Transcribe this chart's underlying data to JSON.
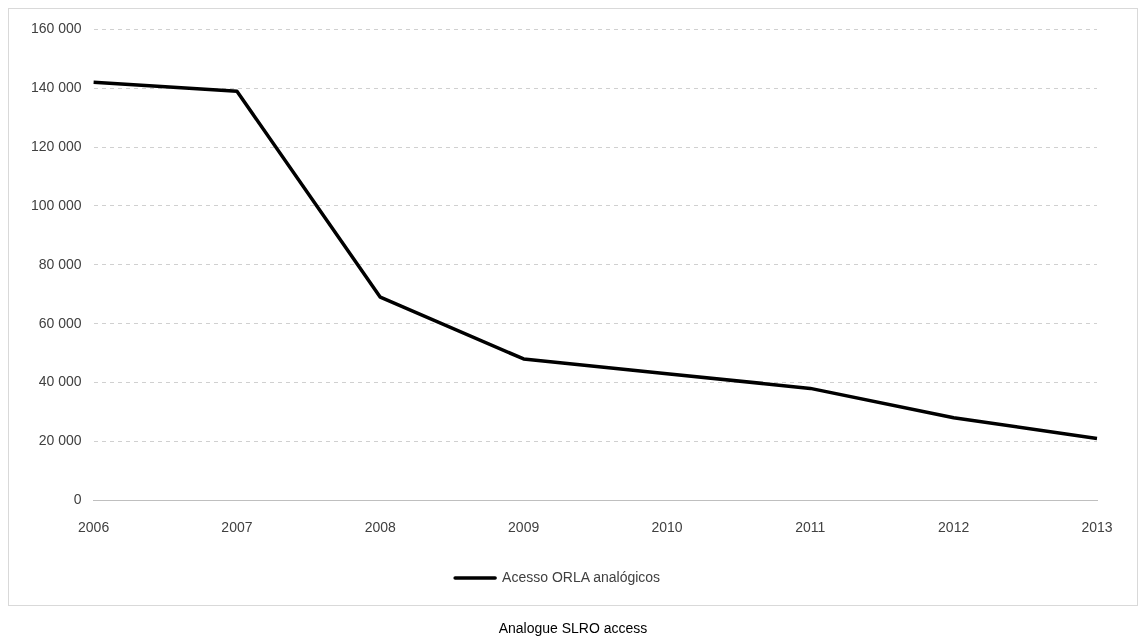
{
  "chart_data": {
    "type": "line",
    "categories": [
      "2006",
      "2007",
      "2008",
      "2009",
      "2010",
      "2011",
      "2012",
      "2013"
    ],
    "series": [
      {
        "name": "Acesso ORLA analógicos",
        "color": "#000000",
        "values": [
          142000,
          139000,
          69000,
          48000,
          43000,
          38000,
          28000,
          21000
        ]
      }
    ],
    "ylim": [
      0,
      160000
    ],
    "yticks": [
      0,
      {
        "value": 20000,
        "label": "20 000"
      },
      {
        "value": 40000,
        "label": "40 000"
      },
      {
        "value": 60000,
        "label": "60 000"
      },
      {
        "value": 80000,
        "label": "80 000"
      },
      {
        "value": 100000,
        "label": "100 000"
      },
      {
        "value": 120000,
        "label": "120 000"
      },
      {
        "value": 140000,
        "label": "140 000"
      },
      {
        "value": 160000,
        "label": "160 000"
      }
    ],
    "grid": "y",
    "line_style": "solid",
    "marker": "none",
    "legend": "bottom",
    "annotations": [
      "Analogue SLRO access"
    ]
  }
}
